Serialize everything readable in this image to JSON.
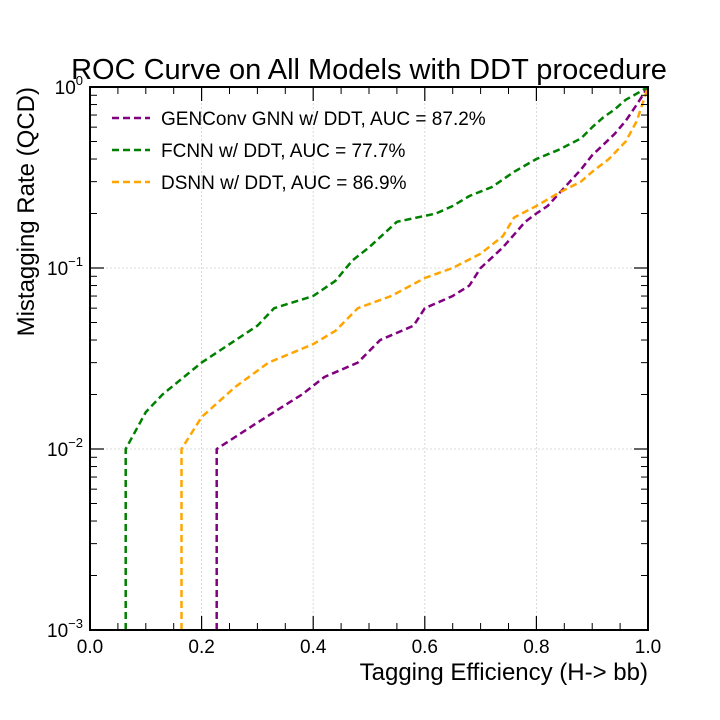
{
  "chart_data": {
    "type": "line",
    "title": "ROC Curve on All Models with DDT procedure",
    "xlabel": "Tagging Efficiency (H-> bb)",
    "ylabel": "Mistagging Rate (QCD)",
    "xlim": [
      0,
      1
    ],
    "ylim": [
      0.001,
      1
    ],
    "yscale": "log",
    "grid": true,
    "legend_position": "top-left",
    "x_ticks": [
      "0.0",
      "0.2",
      "0.4",
      "0.6",
      "0.8",
      "1.0"
    ],
    "y_ticks": [
      {
        "base": "10",
        "exp": "−3"
      },
      {
        "base": "10",
        "exp": "−2"
      },
      {
        "base": "10",
        "exp": "−1"
      },
      {
        "base": "10",
        "exp": "0"
      }
    ],
    "series": [
      {
        "name": "GENConv GNN w/ DDT, AUC = 87.2%",
        "color": "#800080",
        "points": [
          [
            0.227,
            0.001
          ],
          [
            0.227,
            0.01
          ],
          [
            0.3,
            0.014
          ],
          [
            0.38,
            0.02
          ],
          [
            0.42,
            0.025
          ],
          [
            0.48,
            0.03
          ],
          [
            0.52,
            0.04
          ],
          [
            0.58,
            0.048
          ],
          [
            0.6,
            0.06
          ],
          [
            0.65,
            0.07
          ],
          [
            0.68,
            0.08
          ],
          [
            0.7,
            0.1
          ],
          [
            0.74,
            0.13
          ],
          [
            0.78,
            0.18
          ],
          [
            0.8,
            0.2
          ],
          [
            0.82,
            0.22
          ],
          [
            0.86,
            0.3
          ],
          [
            0.88,
            0.35
          ],
          [
            0.9,
            0.42
          ],
          [
            0.92,
            0.48
          ],
          [
            0.94,
            0.55
          ],
          [
            0.96,
            0.65
          ],
          [
            0.98,
            0.8
          ],
          [
            1.0,
            1.0
          ]
        ]
      },
      {
        "name": "FCNN w/ DDT, AUC = 77.7%",
        "color": "#008000",
        "points": [
          [
            0.064,
            0.001
          ],
          [
            0.064,
            0.01
          ],
          [
            0.1,
            0.016
          ],
          [
            0.13,
            0.02
          ],
          [
            0.2,
            0.03
          ],
          [
            0.3,
            0.048
          ],
          [
            0.33,
            0.06
          ],
          [
            0.4,
            0.07
          ],
          [
            0.44,
            0.085
          ],
          [
            0.47,
            0.11
          ],
          [
            0.5,
            0.13
          ],
          [
            0.55,
            0.18
          ],
          [
            0.62,
            0.2
          ],
          [
            0.65,
            0.22
          ],
          [
            0.68,
            0.25
          ],
          [
            0.72,
            0.28
          ],
          [
            0.76,
            0.34
          ],
          [
            0.8,
            0.4
          ],
          [
            0.84,
            0.45
          ],
          [
            0.88,
            0.52
          ],
          [
            0.9,
            0.6
          ],
          [
            0.92,
            0.68
          ],
          [
            0.94,
            0.75
          ],
          [
            0.96,
            0.85
          ],
          [
            0.98,
            0.92
          ],
          [
            1.0,
            1.0
          ]
        ]
      },
      {
        "name": "DSNN w/ DDT, AUC = 86.9%",
        "color": "#ffa500",
        "points": [
          [
            0.164,
            0.001
          ],
          [
            0.164,
            0.01
          ],
          [
            0.2,
            0.015
          ],
          [
            0.26,
            0.022
          ],
          [
            0.32,
            0.03
          ],
          [
            0.4,
            0.038
          ],
          [
            0.44,
            0.045
          ],
          [
            0.48,
            0.06
          ],
          [
            0.54,
            0.07
          ],
          [
            0.6,
            0.088
          ],
          [
            0.65,
            0.1
          ],
          [
            0.7,
            0.12
          ],
          [
            0.74,
            0.15
          ],
          [
            0.76,
            0.19
          ],
          [
            0.8,
            0.22
          ],
          [
            0.84,
            0.26
          ],
          [
            0.88,
            0.3
          ],
          [
            0.9,
            0.34
          ],
          [
            0.93,
            0.4
          ],
          [
            0.96,
            0.5
          ],
          [
            0.98,
            0.65
          ],
          [
            1.0,
            1.0
          ]
        ]
      }
    ]
  }
}
